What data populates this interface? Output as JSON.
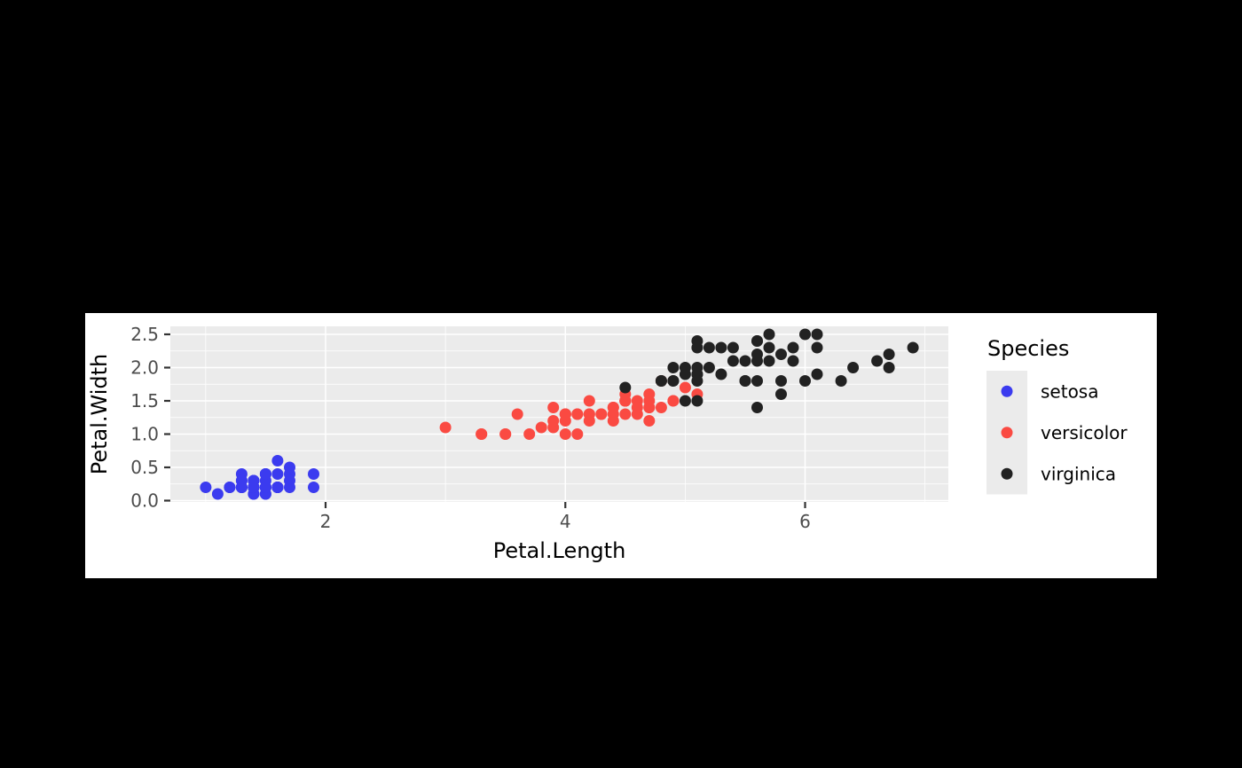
{
  "figure": {
    "background": "#000000",
    "card_background": "#ffffff",
    "panel_background": "#ebebeb",
    "grid_color": "#ffffff",
    "tick_color": "#333333",
    "tick_label_color": "#4d4d4d",
    "axis_title_color": "#000000"
  },
  "chart_data": {
    "type": "scatter",
    "title": "",
    "xlabel": "Petal.Length",
    "ylabel": "Petal.Width",
    "xlim": [
      0.705,
      7.195
    ],
    "ylim": [
      -0.02,
      2.62
    ],
    "x_major_ticks": [
      2,
      4,
      6
    ],
    "x_tick_labels": [
      "2",
      "4",
      "6"
    ],
    "x_minor_ticks": [
      1,
      3,
      5,
      7
    ],
    "y_major_ticks": [
      0,
      0.5,
      1,
      1.5,
      2,
      2.5
    ],
    "y_tick_labels": [
      "0.0",
      "0.5",
      "1.0",
      "1.5",
      "2.0",
      "2.5"
    ],
    "y_minor_ticks": [
      0.25,
      0.75,
      1.25,
      1.75,
      2.25
    ],
    "grid": true,
    "point_radius": 6.5,
    "legend": {
      "title": "Species",
      "position": "right",
      "key_background": "#ebebeb",
      "entries": [
        {
          "label": "setosa",
          "color": "#3b3bef"
        },
        {
          "label": "versicolor",
          "color": "#fa4a42"
        },
        {
          "label": "virginica",
          "color": "#222222"
        }
      ]
    },
    "series": [
      {
        "name": "setosa",
        "color": "#3b3bef",
        "points": [
          [
            1.4,
            0.2
          ],
          [
            1.4,
            0.2
          ],
          [
            1.3,
            0.2
          ],
          [
            1.5,
            0.2
          ],
          [
            1.4,
            0.2
          ],
          [
            1.7,
            0.4
          ],
          [
            1.4,
            0.3
          ],
          [
            1.5,
            0.2
          ],
          [
            1.4,
            0.2
          ],
          [
            1.5,
            0.1
          ],
          [
            1.5,
            0.2
          ],
          [
            1.6,
            0.2
          ],
          [
            1.4,
            0.1
          ],
          [
            1.1,
            0.1
          ],
          [
            1.2,
            0.2
          ],
          [
            1.5,
            0.4
          ],
          [
            1.3,
            0.4
          ],
          [
            1.4,
            0.3
          ],
          [
            1.7,
            0.3
          ],
          [
            1.5,
            0.3
          ],
          [
            1.7,
            0.2
          ],
          [
            1.5,
            0.4
          ],
          [
            1.0,
            0.2
          ],
          [
            1.7,
            0.5
          ],
          [
            1.9,
            0.2
          ],
          [
            1.6,
            0.2
          ],
          [
            1.6,
            0.4
          ],
          [
            1.5,
            0.2
          ],
          [
            1.4,
            0.2
          ],
          [
            1.6,
            0.2
          ],
          [
            1.6,
            0.2
          ],
          [
            1.5,
            0.4
          ],
          [
            1.5,
            0.1
          ],
          [
            1.4,
            0.2
          ],
          [
            1.5,
            0.2
          ],
          [
            1.2,
            0.2
          ],
          [
            1.3,
            0.2
          ],
          [
            1.4,
            0.1
          ],
          [
            1.3,
            0.2
          ],
          [
            1.5,
            0.2
          ],
          [
            1.3,
            0.3
          ],
          [
            1.3,
            0.3
          ],
          [
            1.3,
            0.2
          ],
          [
            1.6,
            0.6
          ],
          [
            1.9,
            0.4
          ],
          [
            1.4,
            0.3
          ],
          [
            1.6,
            0.2
          ],
          [
            1.4,
            0.2
          ],
          [
            1.5,
            0.2
          ],
          [
            1.4,
            0.2
          ]
        ]
      },
      {
        "name": "versicolor",
        "color": "#fa4a42",
        "points": [
          [
            4.7,
            1.4
          ],
          [
            4.5,
            1.5
          ],
          [
            4.9,
            1.5
          ],
          [
            4.0,
            1.3
          ],
          [
            4.6,
            1.5
          ],
          [
            4.5,
            1.3
          ],
          [
            4.7,
            1.6
          ],
          [
            3.3,
            1.0
          ],
          [
            4.6,
            1.3
          ],
          [
            3.9,
            1.4
          ],
          [
            3.5,
            1.0
          ],
          [
            4.2,
            1.5
          ],
          [
            4.0,
            1.0
          ],
          [
            4.7,
            1.4
          ],
          [
            3.6,
            1.3
          ],
          [
            4.4,
            1.4
          ],
          [
            4.5,
            1.5
          ],
          [
            4.1,
            1.0
          ],
          [
            4.5,
            1.5
          ],
          [
            3.9,
            1.1
          ],
          [
            4.8,
            1.8
          ],
          [
            4.0,
            1.3
          ],
          [
            4.9,
            1.5
          ],
          [
            4.7,
            1.2
          ],
          [
            4.3,
            1.3
          ],
          [
            4.4,
            1.4
          ],
          [
            4.8,
            1.4
          ],
          [
            5.0,
            1.7
          ],
          [
            4.5,
            1.5
          ],
          [
            3.5,
            1.0
          ],
          [
            3.8,
            1.1
          ],
          [
            3.7,
            1.0
          ],
          [
            3.9,
            1.2
          ],
          [
            5.1,
            1.6
          ],
          [
            4.5,
            1.5
          ],
          [
            4.5,
            1.6
          ],
          [
            4.7,
            1.5
          ],
          [
            4.4,
            1.3
          ],
          [
            4.1,
            1.3
          ],
          [
            4.0,
            1.3
          ],
          [
            4.4,
            1.2
          ],
          [
            4.6,
            1.4
          ],
          [
            4.0,
            1.2
          ],
          [
            3.3,
            1.0
          ],
          [
            4.2,
            1.3
          ],
          [
            4.2,
            1.2
          ],
          [
            4.2,
            1.3
          ],
          [
            4.3,
            1.3
          ],
          [
            3.0,
            1.1
          ],
          [
            4.1,
            1.3
          ]
        ]
      },
      {
        "name": "virginica",
        "color": "#222222",
        "points": [
          [
            6.0,
            2.5
          ],
          [
            5.1,
            1.9
          ],
          [
            5.9,
            2.1
          ],
          [
            5.6,
            1.8
          ],
          [
            5.8,
            2.2
          ],
          [
            6.6,
            2.1
          ],
          [
            4.5,
            1.7
          ],
          [
            6.3,
            1.8
          ],
          [
            5.8,
            1.8
          ],
          [
            6.1,
            2.5
          ],
          [
            5.1,
            2.0
          ],
          [
            5.3,
            1.9
          ],
          [
            5.5,
            2.1
          ],
          [
            5.0,
            2.0
          ],
          [
            5.1,
            2.4
          ],
          [
            5.3,
            2.3
          ],
          [
            5.5,
            1.8
          ],
          [
            6.7,
            2.2
          ],
          [
            6.9,
            2.3
          ],
          [
            5.0,
            1.5
          ],
          [
            5.7,
            2.3
          ],
          [
            4.9,
            2.0
          ],
          [
            6.7,
            2.0
          ],
          [
            4.9,
            1.8
          ],
          [
            5.7,
            2.1
          ],
          [
            6.0,
            1.8
          ],
          [
            4.8,
            1.8
          ],
          [
            4.9,
            1.8
          ],
          [
            5.6,
            2.1
          ],
          [
            5.8,
            1.6
          ],
          [
            6.1,
            1.9
          ],
          [
            6.4,
            2.0
          ],
          [
            5.6,
            2.2
          ],
          [
            5.1,
            1.5
          ],
          [
            5.6,
            1.4
          ],
          [
            6.1,
            2.3
          ],
          [
            5.6,
            2.4
          ],
          [
            5.5,
            1.8
          ],
          [
            4.8,
            1.8
          ],
          [
            5.4,
            2.1
          ],
          [
            5.6,
            2.4
          ],
          [
            5.1,
            2.3
          ],
          [
            5.1,
            1.9
          ],
          [
            5.9,
            2.3
          ],
          [
            5.7,
            2.5
          ],
          [
            5.2,
            2.3
          ],
          [
            5.0,
            1.9
          ],
          [
            5.2,
            2.0
          ],
          [
            5.4,
            2.3
          ],
          [
            5.1,
            1.8
          ]
        ]
      }
    ]
  }
}
